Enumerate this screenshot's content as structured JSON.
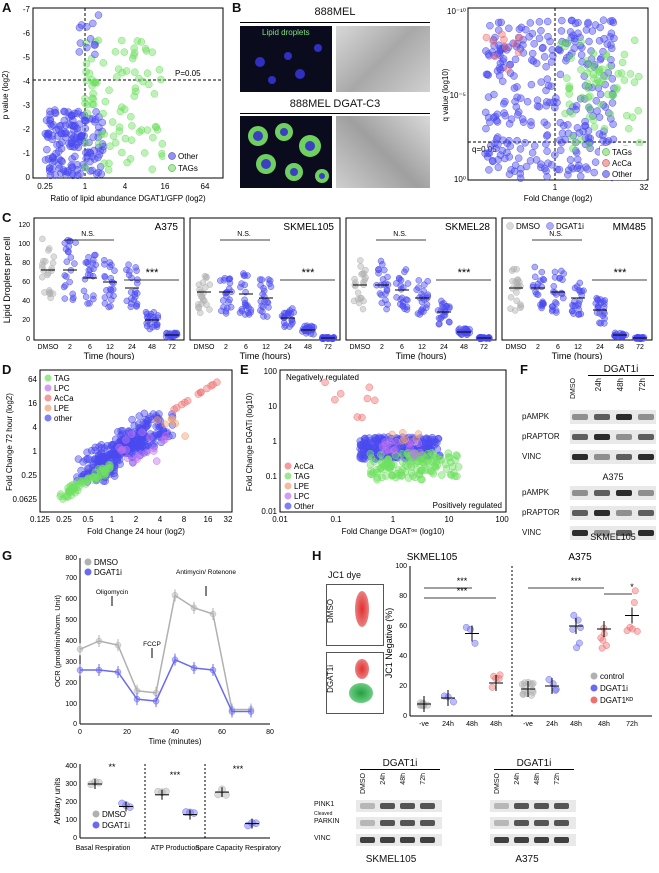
{
  "A": {
    "letter": "A",
    "ylabel": "p value (log2)",
    "xlabel": "Ratio of lipid abundance DGAT1/GFP (log2)",
    "yticks": [
      "-7",
      "-6",
      "-5",
      "-4",
      "-3",
      "-2",
      "-1",
      "0"
    ],
    "xticks": [
      "0.25",
      "1",
      "4",
      "16",
      "64"
    ],
    "threshold": "P=0.05",
    "legend": [
      "Other",
      "TAGs"
    ]
  },
  "B": {
    "letter": "B",
    "top_title": "888MEL",
    "bottom_title": "888MEL DGAT-C3",
    "micro_label": "Lipid droplets",
    "ylabel": "q value (log10)",
    "xlabel": "Fold Change (log2)",
    "yticks": [
      "10⁻¹⁰",
      "10⁻⁵",
      "10⁰"
    ],
    "xticks": [
      "1",
      "32"
    ],
    "threshold": "q=0.05",
    "legend": [
      "TAGs",
      "AcCa",
      "Other"
    ]
  },
  "C": {
    "letter": "C",
    "ylabel": "Lipid Droplets per cell",
    "xlabel": "Time (hours)",
    "yticks": [
      "0",
      "20",
      "40",
      "60",
      "80",
      "100",
      "120"
    ],
    "xticks": [
      "DMSO",
      "2",
      "6",
      "12",
      "24",
      "48",
      "72"
    ],
    "ns": "N.S.",
    "sig": "***",
    "titles": [
      "A375",
      "SKMEL105",
      "SKMEL28",
      "MM485"
    ],
    "legend": [
      "DMSO",
      "DGAT1i"
    ]
  },
  "D": {
    "letter": "D",
    "ylabel": "Fold Change 72 hour (log2)",
    "xlabel": "Fold Change 24 hour (log2)",
    "yticks": [
      "64",
      "16",
      "4",
      "1",
      "0.25",
      "0.0625"
    ],
    "xticks": [
      "0.125",
      "0.25",
      "0.5",
      "1",
      "2",
      "4",
      "8",
      "16",
      "32"
    ],
    "legend": [
      "TAG",
      "LPC",
      "AcCa",
      "LPE",
      "other"
    ]
  },
  "E": {
    "letter": "E",
    "ylabel": "Fold Change DGATi (log10)",
    "xlabel": "Fold Change DGATᵒᵉ (log10)",
    "yticks": [
      "100",
      "10",
      "1",
      "0.1",
      "0.01"
    ],
    "xticks": [
      "0.01",
      "0.1",
      "1",
      "10",
      "100"
    ],
    "top_note": "Negatively regulated",
    "bottom_note": "Positively regulated",
    "legend": [
      "AcCa",
      "TAG",
      "LPE",
      "LPC",
      "Other"
    ]
  },
  "F": {
    "letter": "F",
    "header": "DGAT1i",
    "lanes": [
      "DMSO",
      "24h",
      "48h",
      "72h"
    ],
    "rows_top": [
      "pAMPK",
      "pRAPTOR",
      "VINC"
    ],
    "mid_label": "A375",
    "rows_bottom": [
      "pAMPK",
      "pRAPTOR",
      "VINC"
    ],
    "bottom_label": "SKMEL105"
  },
  "G": {
    "letter": "G",
    "ylabel_top": "OCR (pmol/min/Norm. Unit)",
    "xlabel_top": "Time (minutes)",
    "yticks_top": [
      "0",
      "100",
      "200",
      "300",
      "400",
      "500",
      "600",
      "700",
      "800"
    ],
    "xticks_top": [
      "0",
      "20",
      "40",
      "60",
      "80"
    ],
    "annotations": [
      "Oligomycin",
      "FCCP",
      "Antimycin/\nRotenone"
    ],
    "legend": [
      "DMSO",
      "DGAT1i"
    ],
    "ylabel_bottom": "Arbitary units",
    "yticks_bottom": [
      "0",
      "100",
      "200",
      "300",
      "400"
    ],
    "groups": [
      "Basal\nRespiration",
      "ATP\nProduction",
      "Spare Capacity\nRespiratory"
    ],
    "sig": [
      "**",
      "***",
      "***"
    ]
  },
  "H": {
    "letter": "H",
    "dye_label": "JC1 dye",
    "flow_labels": [
      "DMSO",
      "DGAT1i"
    ],
    "title_left": "SKMEL105",
    "title_right": "A375",
    "ylabel": "JC1 Negative (%)",
    "yticks": [
      "0",
      "20",
      "40",
      "60",
      "80",
      "100"
    ],
    "xticks": [
      "-ve",
      "24h",
      "48h",
      "48h",
      "-ve",
      "24h",
      "48h",
      "48h",
      "72h"
    ],
    "sig": [
      "***",
      "***",
      "***",
      "*"
    ],
    "legend": [
      "control",
      "DGAT1i",
      "DGAT1ᴷᴰ"
    ],
    "blot_header_left": "DGAT1i",
    "blot_header_right": "DGAT1i",
    "blot_lanes": [
      "DMSO",
      "24h",
      "48h",
      "72h"
    ],
    "blot_rows": [
      "PINK1",
      "PARKIN",
      "VINC"
    ],
    "blot_sub": "Cleaved",
    "blot_bottom_left": "SKMEL105",
    "blot_bottom_right": "A375"
  },
  "colors": {
    "other": "#4a4af0",
    "tag": "#6fe060",
    "acca": "#f07070",
    "lpc": "#c070f0",
    "lpe": "#f0a070",
    "dmso": "#b0b0b0"
  }
}
